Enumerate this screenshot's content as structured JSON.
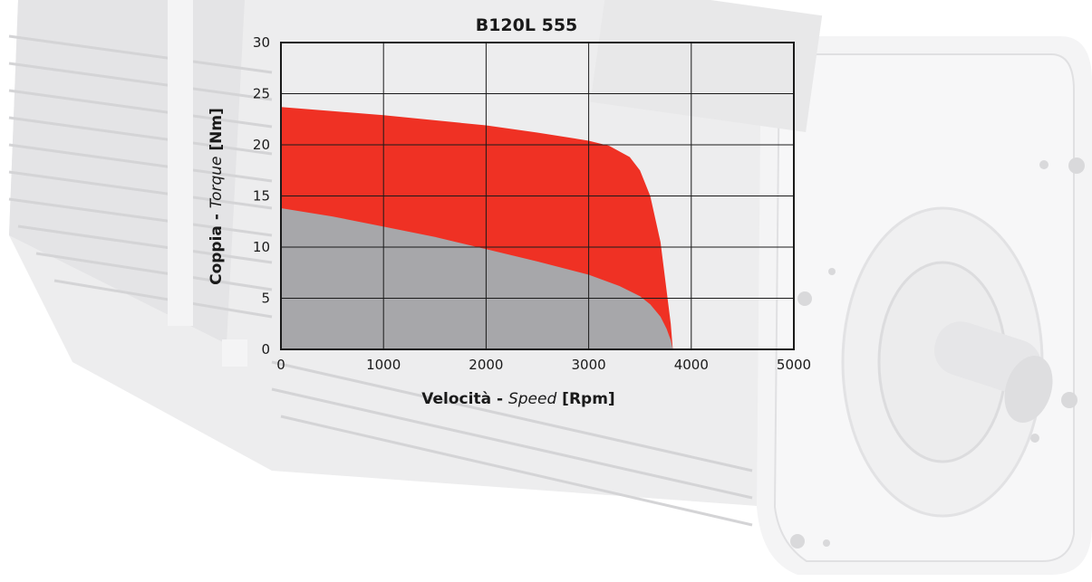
{
  "chart_data": {
    "type": "area",
    "title": "B120L 555",
    "xlabel": {
      "main": "Velocità - ",
      "italic": "Speed",
      "unit": " [Rpm]"
    },
    "ylabel": {
      "main": "Coppia - ",
      "italic": "Torque",
      "unit": " [Nm]"
    },
    "xlim": [
      0,
      5000
    ],
    "ylim": [
      0,
      30
    ],
    "x_ticks": [
      0,
      1000,
      2000,
      3000,
      4000,
      5000
    ],
    "y_ticks": [
      0,
      5,
      10,
      15,
      20,
      25,
      30
    ],
    "grid": true,
    "series": [
      {
        "name": "",
        "color": "#ef3124",
        "x": [
          0,
          500,
          1000,
          1500,
          2000,
          2500,
          3000,
          3200,
          3400,
          3500,
          3600,
          3700,
          3750,
          3800,
          3820
        ],
        "values": [
          23.7,
          23.3,
          22.9,
          22.4,
          21.9,
          21.2,
          20.4,
          19.9,
          18.8,
          17.5,
          15.0,
          10.5,
          6.5,
          2.5,
          0
        ]
      },
      {
        "name": "",
        "color": "#a7a7aa",
        "x": [
          0,
          500,
          1000,
          1500,
          2000,
          2500,
          3000,
          3300,
          3500,
          3600,
          3700,
          3760,
          3800,
          3820
        ],
        "values": [
          13.8,
          13.0,
          12.0,
          11.0,
          9.8,
          8.6,
          7.3,
          6.2,
          5.2,
          4.4,
          3.2,
          2.0,
          0.9,
          0
        ]
      }
    ]
  }
}
